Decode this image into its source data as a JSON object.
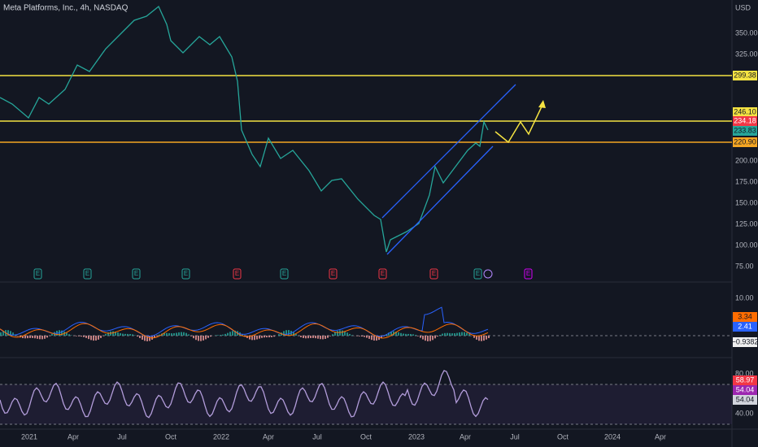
{
  "header": {
    "title": "Meta Platforms, Inc., 4h, NASDAQ"
  },
  "price_axis": {
    "currency": "USD",
    "labels": [
      "350.00",
      "325.00",
      "200.00",
      "175.00",
      "150.00",
      "125.00",
      "100.00",
      "75.00"
    ]
  },
  "price_tags": [
    "299.38",
    "246.10",
    "234.18",
    "233.83",
    "220.90"
  ],
  "events": [
    "E",
    "E",
    "E",
    "E",
    "E",
    "E",
    "E",
    "E",
    "E",
    "E",
    "E"
  ],
  "macd_axis": {
    "labels": [
      "10.00"
    ],
    "tags": [
      "3.34",
      "2.41",
      "−0.9382"
    ]
  },
  "rsi_axis": {
    "labels": [
      "80.00",
      "40.00"
    ],
    "tags": [
      "58.97",
      "54.04",
      "54.04"
    ]
  },
  "time_axis": [
    "2021",
    "Apr",
    "Jul",
    "Oct",
    "2022",
    "Apr",
    "Jul",
    "Oct",
    "2023",
    "Apr",
    "Jul",
    "Oct",
    "2024",
    "Apr"
  ]
}
